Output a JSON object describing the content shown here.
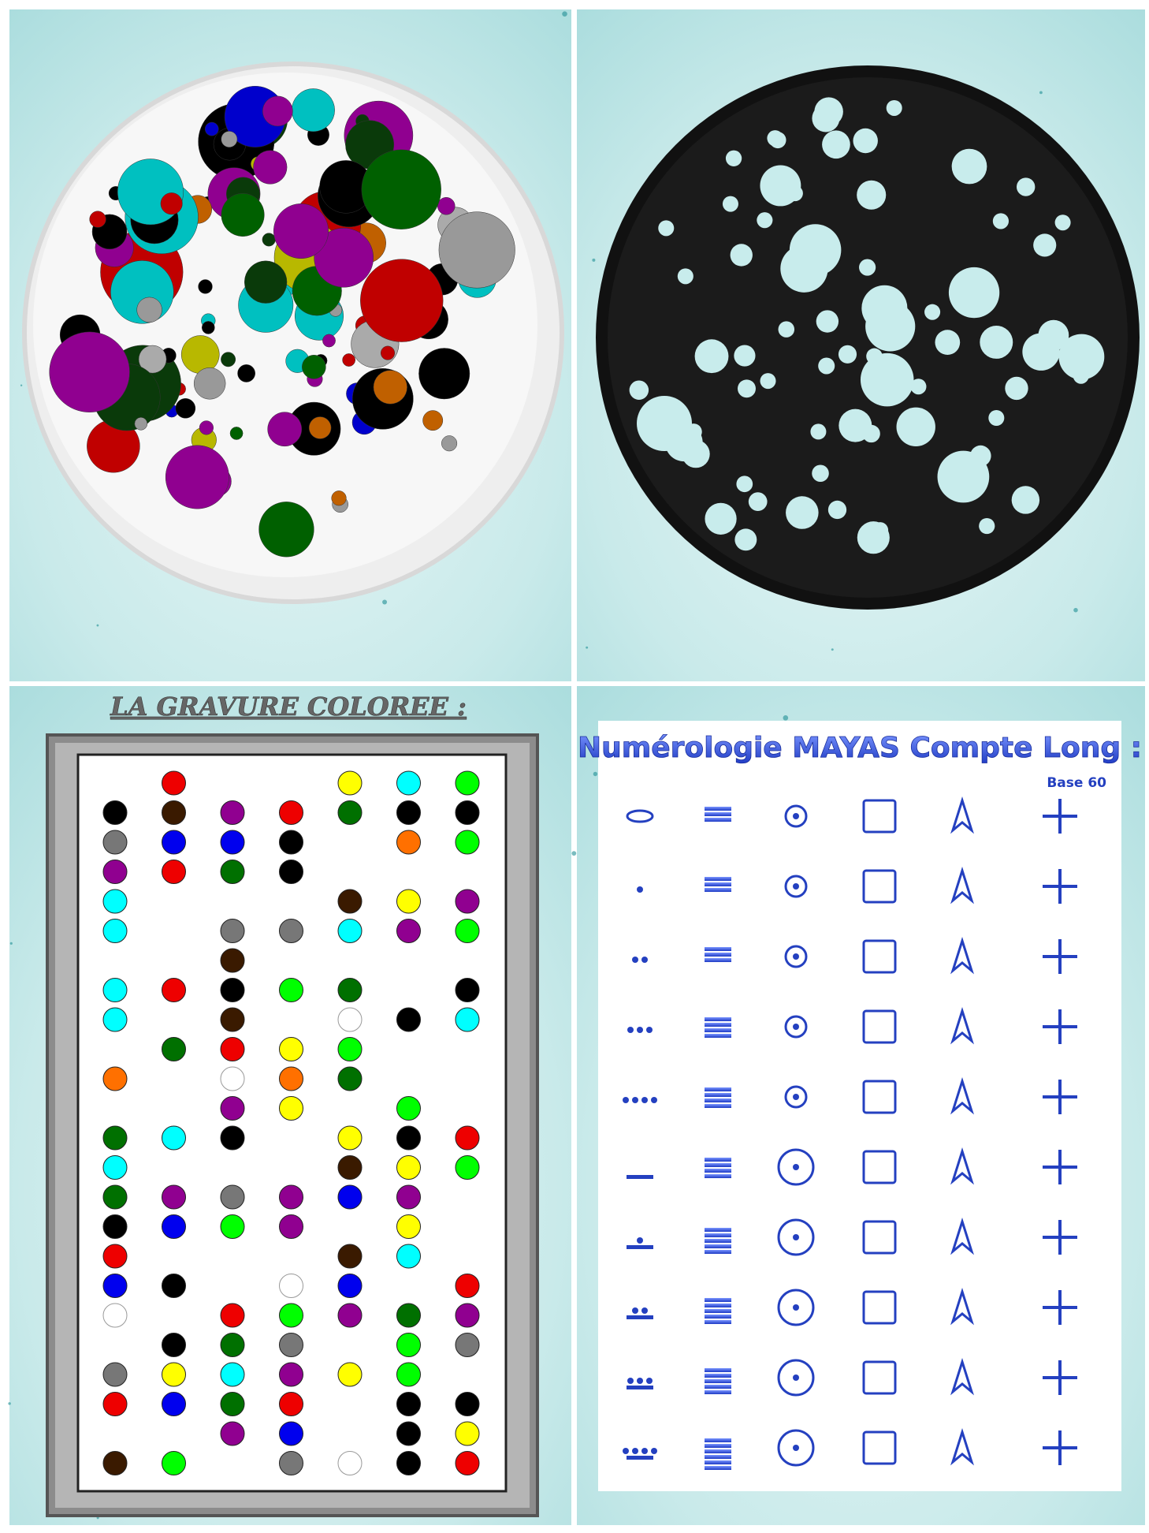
{
  "left_panel": {
    "title": "LA GRAVURE COLOREE :"
  },
  "right_panel": {
    "title": "Numérologie MAYAS Compte Long :",
    "subtitle": "Base 60"
  }
}
